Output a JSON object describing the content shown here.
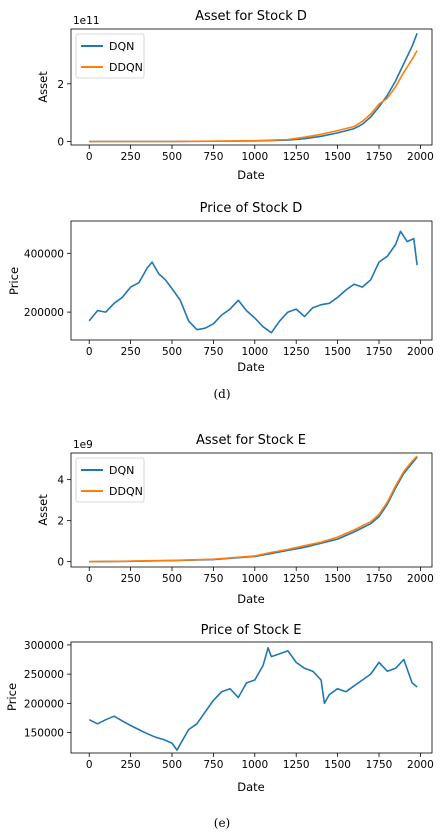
{
  "colors": {
    "series1": "#1f77b4",
    "series2": "#ff7f0e",
    "axis": "#000000"
  },
  "captions": [
    "(d)",
    "(e)"
  ],
  "chart_data": [
    {
      "type": "line",
      "title": "Asset for Stock D",
      "xlabel": "Date",
      "ylabel": "Asset",
      "offset_label": "1e11",
      "xlim": [
        -110,
        2070
      ],
      "ylim": [
        -0.12,
        3.9
      ],
      "xticks": [
        0,
        250,
        500,
        750,
        1000,
        1250,
        1500,
        1750,
        2000
      ],
      "yticks": [
        0,
        2
      ],
      "legend": "top-left",
      "series": [
        {
          "name": "DQN",
          "x": [
            0,
            500,
            1000,
            1200,
            1300,
            1400,
            1500,
            1600,
            1650,
            1700,
            1750,
            1800,
            1850,
            1900,
            1950,
            1980
          ],
          "y": [
            0,
            0,
            0.02,
            0.05,
            0.1,
            0.18,
            0.3,
            0.45,
            0.6,
            0.85,
            1.2,
            1.6,
            2.1,
            2.7,
            3.3,
            3.75
          ]
        },
        {
          "name": "DDQN",
          "x": [
            0,
            500,
            1000,
            1200,
            1300,
            1400,
            1500,
            1600,
            1650,
            1700,
            1750,
            1800,
            1850,
            1900,
            1950,
            1980
          ],
          "y": [
            0,
            0,
            0.03,
            0.07,
            0.15,
            0.25,
            0.38,
            0.52,
            0.7,
            0.95,
            1.3,
            1.5,
            1.9,
            2.4,
            2.85,
            3.15
          ]
        }
      ]
    },
    {
      "type": "line",
      "title": "Price of Stock D",
      "xlabel": "Date",
      "ylabel": "Price",
      "xlim": [
        -110,
        2070
      ],
      "ylim": [
        105000,
        510000
      ],
      "xticks": [
        0,
        250,
        500,
        750,
        1000,
        1250,
        1500,
        1750,
        2000
      ],
      "yticks": [
        200000,
        400000
      ],
      "ytick_labels": [
        "200000",
        "400000"
      ],
      "series": [
        {
          "name": "",
          "x": [
            0,
            50,
            100,
            150,
            200,
            250,
            300,
            350,
            380,
            420,
            460,
            500,
            550,
            600,
            650,
            700,
            750,
            800,
            850,
            900,
            950,
            1000,
            1050,
            1100,
            1150,
            1200,
            1250,
            1300,
            1350,
            1400,
            1450,
            1500,
            1550,
            1600,
            1650,
            1700,
            1750,
            1800,
            1850,
            1880,
            1920,
            1960,
            1980
          ],
          "y": [
            170000,
            205000,
            200000,
            230000,
            250000,
            285000,
            300000,
            350000,
            370000,
            330000,
            310000,
            280000,
            240000,
            170000,
            140000,
            145000,
            160000,
            190000,
            210000,
            240000,
            205000,
            180000,
            150000,
            130000,
            170000,
            200000,
            210000,
            185000,
            215000,
            225000,
            230000,
            250000,
            275000,
            295000,
            285000,
            310000,
            370000,
            390000,
            430000,
            475000,
            440000,
            450000,
            360000
          ]
        }
      ]
    },
    {
      "type": "line",
      "title": "Asset for Stock E",
      "xlabel": "Date",
      "ylabel": "Asset",
      "offset_label": "1e9",
      "xlim": [
        -110,
        2070
      ],
      "ylim": [
        -0.26,
        5.3
      ],
      "xticks": [
        0,
        250,
        500,
        750,
        1000,
        1250,
        1500,
        1750,
        2000
      ],
      "yticks": [
        0,
        2,
        4
      ],
      "legend": "top-left",
      "series": [
        {
          "name": "DQN",
          "x": [
            0,
            250,
            500,
            750,
            1000,
            1100,
            1200,
            1300,
            1400,
            1500,
            1600,
            1700,
            1750,
            1800,
            1850,
            1900,
            1950,
            1980
          ],
          "y": [
            0,
            0.02,
            0.05,
            0.1,
            0.25,
            0.4,
            0.55,
            0.7,
            0.9,
            1.1,
            1.45,
            1.85,
            2.2,
            2.8,
            3.6,
            4.3,
            4.8,
            5.1
          ]
        },
        {
          "name": "DDQN",
          "x": [
            0,
            250,
            500,
            750,
            1000,
            1100,
            1200,
            1300,
            1400,
            1500,
            1600,
            1700,
            1750,
            1800,
            1850,
            1900,
            1950,
            1980
          ],
          "y": [
            0,
            0.03,
            0.06,
            0.12,
            0.28,
            0.45,
            0.6,
            0.78,
            0.95,
            1.2,
            1.55,
            1.95,
            2.3,
            2.9,
            3.7,
            4.4,
            4.9,
            5.15
          ]
        }
      ]
    },
    {
      "type": "line",
      "title": "Price of Stock E",
      "xlabel": "Date",
      "ylabel": "Price",
      "xlim": [
        -110,
        2070
      ],
      "ylim": [
        115000,
        305000
      ],
      "xticks": [
        0,
        250,
        500,
        750,
        1000,
        1250,
        1500,
        1750,
        2000
      ],
      "yticks": [
        150000,
        200000,
        250000,
        300000
      ],
      "ytick_labels": [
        "150000",
        "200000",
        "250000",
        "300000"
      ],
      "series": [
        {
          "name": "",
          "x": [
            0,
            50,
            100,
            150,
            200,
            250,
            300,
            350,
            400,
            450,
            500,
            530,
            560,
            600,
            650,
            700,
            750,
            800,
            850,
            900,
            950,
            1000,
            1050,
            1080,
            1100,
            1150,
            1200,
            1250,
            1300,
            1350,
            1400,
            1420,
            1450,
            1500,
            1550,
            1600,
            1650,
            1700,
            1750,
            1800,
            1850,
            1900,
            1950,
            1980
          ],
          "y": [
            172000,
            165000,
            172000,
            178000,
            170000,
            162000,
            155000,
            148000,
            142000,
            138000,
            132000,
            120000,
            135000,
            155000,
            165000,
            185000,
            205000,
            220000,
            225000,
            210000,
            235000,
            240000,
            265000,
            295000,
            280000,
            285000,
            290000,
            270000,
            260000,
            255000,
            240000,
            200000,
            215000,
            225000,
            220000,
            230000,
            240000,
            250000,
            270000,
            255000,
            260000,
            275000,
            235000,
            228000
          ]
        }
      ]
    }
  ]
}
